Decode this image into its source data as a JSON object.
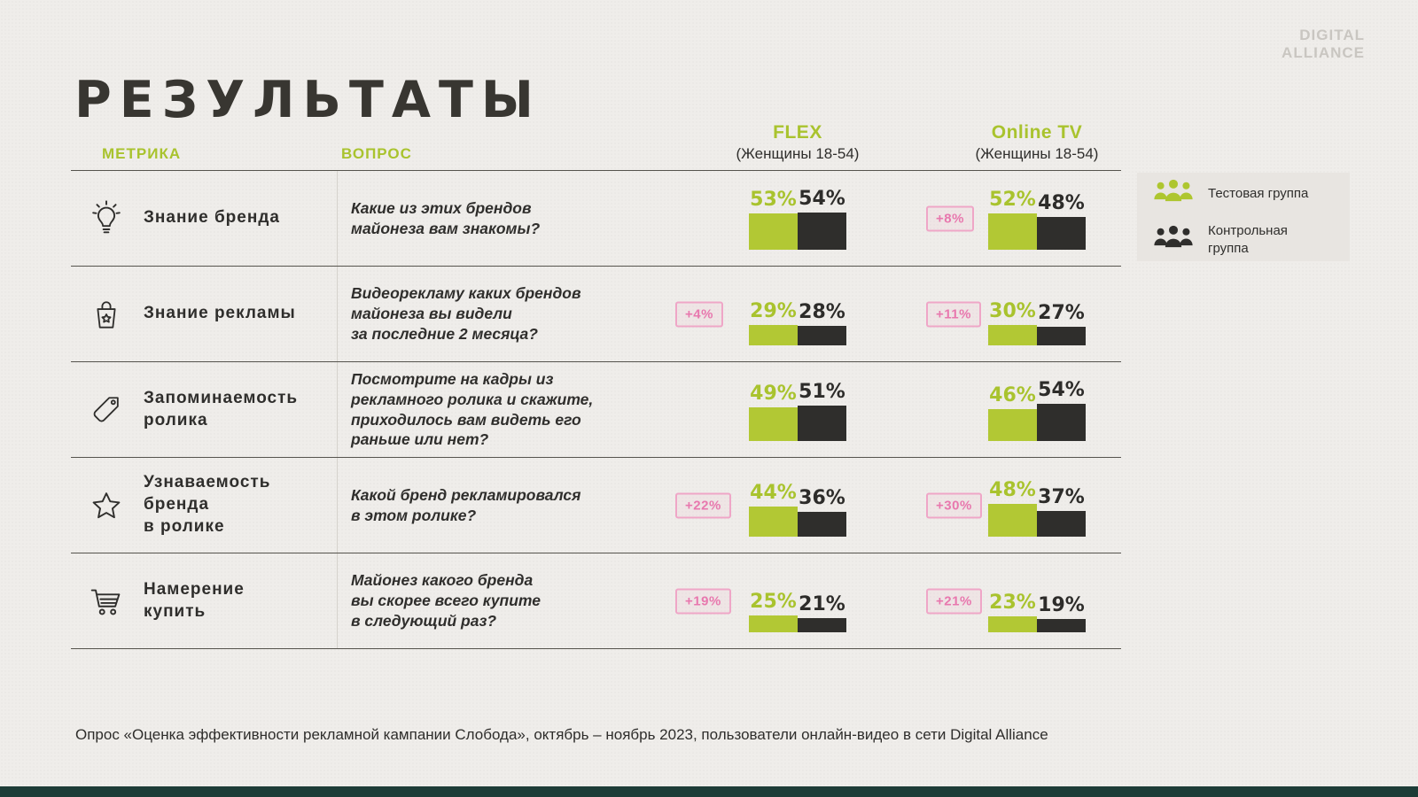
{
  "logo": {
    "line1": "DIGITAL",
    "line2": "ALLIANCE"
  },
  "title": "РЕЗУЛЬТАТЫ",
  "colors": {
    "accent_green": "#aec62f",
    "dark": "#2f2e2c",
    "badge_pink": "#e878ae",
    "bottom_strip": "#1d3c37"
  },
  "table": {
    "headers": {
      "metric": "МЕТРИКА",
      "question": "ВОПРОС",
      "col1": {
        "name": "FLEX",
        "subtitle": "(Женщины 18-54)"
      },
      "col2": {
        "name": "Online TV",
        "subtitle": "(Женщины 18-54)"
      }
    },
    "rows": [
      {
        "icon": "lightbulb-icon",
        "metric": "Знание бренда",
        "question": "Какие из этих брендов\nмайонеза вам знакомы?",
        "flex": {
          "uplift": null,
          "test": 53,
          "control": 54
        },
        "online": {
          "uplift": "+8%",
          "test": 52,
          "control": 48
        }
      },
      {
        "icon": "shopping-bag-icon",
        "metric": "Знание рекламы",
        "question": "Видеорекламу каких брендов\nмайонеза вы видели\nза последние 2 месяца?",
        "flex": {
          "uplift": "+4%",
          "test": 29,
          "control": 28
        },
        "online": {
          "uplift": "+11%",
          "test": 30,
          "control": 27
        }
      },
      {
        "icon": "price-tag-icon",
        "metric": "Запоминаемость\nролика",
        "question": "Посмотрите на кадры из\nрекламного ролика и скажите,\nприходилось вам видеть его\nраньше или нет?",
        "flex": {
          "uplift": null,
          "test": 49,
          "control": 51
        },
        "online": {
          "uplift": null,
          "test": 46,
          "control": 54
        }
      },
      {
        "icon": "star-icon",
        "metric": "Узнаваемость\nбренда\nв ролике",
        "question": "Какой бренд рекламировался\nв этом ролике?",
        "flex": {
          "uplift": "+22%",
          "test": 44,
          "control": 36
        },
        "online": {
          "uplift": "+30%",
          "test": 48,
          "control": 37
        }
      },
      {
        "icon": "cart-icon",
        "metric": "Намерение\nкупить",
        "question": "Майонез какого бренда\nвы скорее всего купите\nв следующий раз?",
        "flex": {
          "uplift": "+19%",
          "test": 25,
          "control": 21
        },
        "online": {
          "uplift": "+21%",
          "test": 23,
          "control": 19
        }
      }
    ]
  },
  "legend": [
    {
      "label": "Тестовая группа",
      "color": "#aec62f"
    },
    {
      "label": "Контрольная группа",
      "color": "#2f2e2c"
    }
  ],
  "footnote": "Опрос «Оценка эффективности рекламной кампании Слобода», октябрь – ноябрь 2023, пользователи онлайн-видео в сети Digital Alliance",
  "chart_data": {
    "type": "bar",
    "title": "РЕЗУЛЬТАТЫ",
    "legend": [
      "Тестовая группа",
      "Контрольная группа"
    ],
    "legend_position": "right",
    "columns": [
      "FLEX (Женщины 18-54)",
      "Online TV (Женщины 18-54)"
    ],
    "categories": [
      "Знание бренда",
      "Знание рекламы",
      "Запоминаемость ролика",
      "Узнаваемость бренда в ролике",
      "Намерение купить"
    ],
    "series": [
      {
        "column": "FLEX",
        "name": "Тестовая группа",
        "values": [
          53,
          29,
          49,
          44,
          25
        ]
      },
      {
        "column": "FLEX",
        "name": "Контрольная группа",
        "values": [
          54,
          28,
          51,
          36,
          21
        ]
      },
      {
        "column": "Online TV",
        "name": "Тестовая группа",
        "values": [
          52,
          30,
          46,
          48,
          23
        ]
      },
      {
        "column": "Online TV",
        "name": "Контрольная группа",
        "values": [
          48,
          27,
          54,
          37,
          19
        ]
      }
    ],
    "uplift_badges": {
      "FLEX": [
        null,
        "+4%",
        null,
        "+22%",
        "+19%"
      ],
      "Online TV": [
        "+8%",
        "+11%",
        null,
        "+30%",
        "+21%"
      ]
    },
    "value_unit": "%",
    "ylim": [
      0,
      60
    ],
    "grid": false
  }
}
